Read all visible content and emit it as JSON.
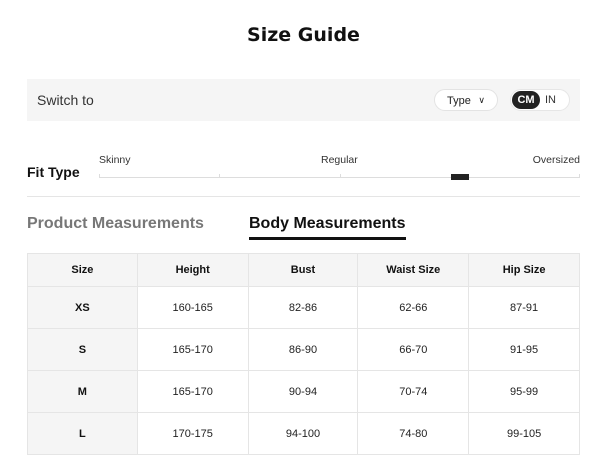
{
  "title": "Size Guide",
  "switch": {
    "label": "Switch to",
    "type_label": "Type",
    "units": [
      "CM",
      "IN"
    ],
    "selected_unit": "CM"
  },
  "fit": {
    "label": "Fit Type",
    "scale": [
      "Skinny",
      "Regular",
      "Oversized"
    ],
    "position_fraction": 0.75
  },
  "tabs": [
    {
      "label": "Product Measurements",
      "active": false
    },
    {
      "label": "Body Measurements",
      "active": true
    }
  ],
  "table": {
    "headers": [
      "Size",
      "Height",
      "Bust",
      "Waist Size",
      "Hip Size"
    ],
    "rows": [
      [
        "XS",
        "160-165",
        "82-86",
        "62-66",
        "87-91"
      ],
      [
        "S",
        "165-170",
        "86-90",
        "66-70",
        "91-95"
      ],
      [
        "M",
        "165-170",
        "90-94",
        "70-74",
        "95-99"
      ],
      [
        "L",
        "170-175",
        "94-100",
        "74-80",
        "99-105"
      ]
    ]
  }
}
